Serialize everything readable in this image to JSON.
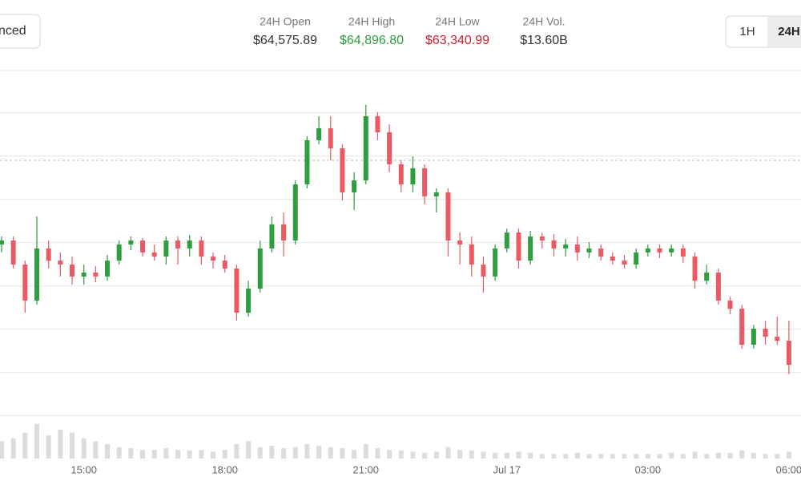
{
  "header": {
    "button": "nced",
    "stats": [
      {
        "label": "24H Open",
        "value": {
          "value": 64575.89,
          "label": "$64,575.89"
        },
        "color": "#333333"
      },
      {
        "label": "24H High",
        "value": {
          "value": 64896.8,
          "label": "$64,896.80"
        },
        "color": "#2e9e3e"
      },
      {
        "label": "24H Low",
        "value": {
          "value": 63340.99,
          "label": "$63,340.99"
        },
        "color": "#c8232c"
      },
      {
        "label": "24H Vol.",
        "value": {
          "value": 13600000000,
          "label": "$13.60B"
        },
        "color": "#333333"
      }
    ],
    "toggles": [
      "1H",
      "24H"
    ]
  },
  "chart_data": {
    "type": "candlestick",
    "up_color": "#2e9e3e",
    "down_color": "#ea5a64",
    "volume_color": "#dcdcdc",
    "ylim": [
      63050,
      65000
    ],
    "gridlines": [
      64850,
      64600,
      64350,
      64100,
      63850,
      63600,
      63350,
      63100
    ],
    "vlim": [
      0,
      100
    ],
    "categories": [
      null,
      null,
      null,
      null,
      null,
      null,
      null,
      "15:00",
      null,
      null,
      null,
      null,
      null,
      null,
      null,
      null,
      null,
      null,
      null,
      "18:00",
      null,
      null,
      null,
      null,
      null,
      null,
      null,
      null,
      null,
      null,
      null,
      "21:00",
      null,
      null,
      null,
      null,
      null,
      null,
      null,
      null,
      null,
      null,
      null,
      "Jul 17",
      null,
      null,
      null,
      null,
      null,
      null,
      null,
      null,
      null,
      null,
      null,
      "03:00",
      null,
      null,
      null,
      null,
      null,
      null,
      null,
      null,
      null,
      null,
      null,
      "06:00"
    ],
    "ohlc": [
      [
        64090,
        64136,
        64044,
        64113
      ],
      [
        64113,
        64136,
        63951,
        63974
      ],
      [
        63974,
        63997,
        63696,
        63766
      ],
      [
        63766,
        64252,
        63743,
        64067
      ],
      [
        64067,
        64113,
        63951,
        63997
      ],
      [
        63997,
        64044,
        63905,
        63974
      ],
      [
        63974,
        64020,
        63858,
        63905
      ],
      [
        63905,
        63974,
        63858,
        63928
      ],
      [
        63928,
        63965,
        63872,
        63905
      ],
      [
        63905,
        64030,
        63881,
        63997
      ],
      [
        63997,
        64113,
        63974,
        64090
      ],
      [
        64090,
        64136,
        64057,
        64113
      ],
      [
        64113,
        64127,
        64020,
        64044
      ],
      [
        64044,
        64090,
        63997,
        64020
      ],
      [
        64020,
        64136,
        63974,
        64113
      ],
      [
        64113,
        64136,
        63974,
        64067
      ],
      [
        64067,
        64145,
        64020,
        64113
      ],
      [
        64113,
        64136,
        63974,
        64020
      ],
      [
        64020,
        64044,
        63951,
        63997
      ],
      [
        63997,
        64030,
        63928,
        63951
      ],
      [
        63951,
        63974,
        63650,
        63696
      ],
      [
        63696,
        63881,
        63673,
        63835
      ],
      [
        63835,
        64113,
        63812,
        64067
      ],
      [
        64067,
        64252,
        64044,
        64206
      ],
      [
        64206,
        64275,
        64020,
        64113
      ],
      [
        64113,
        64460,
        64090,
        64437
      ],
      [
        64437,
        64715,
        64414,
        64692
      ],
      [
        64692,
        64831,
        64669,
        64761
      ],
      [
        64761,
        64831,
        64576,
        64645
      ],
      [
        64645,
        64669,
        64345,
        64391
      ],
      [
        64391,
        64507,
        64289,
        64460
      ],
      [
        64460,
        64897,
        64437,
        64831
      ],
      [
        64831,
        64854,
        64692,
        64738
      ],
      [
        64738,
        64784,
        64507,
        64553
      ],
      [
        64553,
        64576,
        64391,
        64437
      ],
      [
        64437,
        64599,
        64391,
        64530
      ],
      [
        64530,
        64553,
        64321,
        64368
      ],
      [
        64368,
        64414,
        64275,
        64391
      ],
      [
        64391,
        64414,
        64020,
        64113
      ],
      [
        64113,
        64159,
        63974,
        64090
      ],
      [
        64090,
        64136,
        63905,
        63974
      ],
      [
        63974,
        64020,
        63812,
        63905
      ],
      [
        63905,
        64090,
        63881,
        64067
      ],
      [
        64067,
        64182,
        64044,
        64159
      ],
      [
        64159,
        64182,
        63951,
        63997
      ],
      [
        63997,
        64169,
        63974,
        64136
      ],
      [
        64136,
        64159,
        64067,
        64113
      ],
      [
        64113,
        64150,
        64020,
        64067
      ],
      [
        64067,
        64122,
        64020,
        64090
      ],
      [
        64090,
        64136,
        63997,
        64044
      ],
      [
        64044,
        64104,
        64011,
        64067
      ],
      [
        64067,
        64090,
        63997,
        64020
      ],
      [
        64020,
        64044,
        63974,
        63997
      ],
      [
        63997,
        64030,
        63951,
        63974
      ],
      [
        63974,
        64067,
        63951,
        64044
      ],
      [
        64044,
        64090,
        64020,
        64067
      ],
      [
        64067,
        64090,
        64011,
        64044
      ],
      [
        64044,
        64090,
        64020,
        64067
      ],
      [
        64067,
        64090,
        63983,
        64020
      ],
      [
        64020,
        64044,
        63835,
        63881
      ],
      [
        63881,
        63974,
        63858,
        63928
      ],
      [
        63928,
        63951,
        63743,
        63766
      ],
      [
        63766,
        63789,
        63687,
        63719
      ],
      [
        63719,
        63743,
        63488,
        63511
      ],
      [
        63511,
        63627,
        63488,
        63604
      ],
      [
        63604,
        63650,
        63511,
        63557
      ],
      [
        63557,
        63673,
        63511,
        63534
      ],
      [
        63534,
        63650,
        63341,
        63395
      ]
    ],
    "volume": [
      30,
      35,
      45,
      60,
      40,
      50,
      45,
      35,
      30,
      25,
      20,
      18,
      15,
      15,
      18,
      15,
      14,
      15,
      12,
      15,
      25,
      30,
      20,
      22,
      18,
      20,
      25,
      22,
      20,
      18,
      15,
      25,
      18,
      15,
      14,
      12,
      10,
      12,
      20,
      15,
      14,
      12,
      10,
      10,
      12,
      10,
      8,
      8,
      8,
      10,
      8,
      8,
      8,
      8,
      8,
      8,
      8,
      10,
      8,
      12,
      8,
      10,
      10,
      14,
      10,
      8,
      8,
      12
    ]
  }
}
